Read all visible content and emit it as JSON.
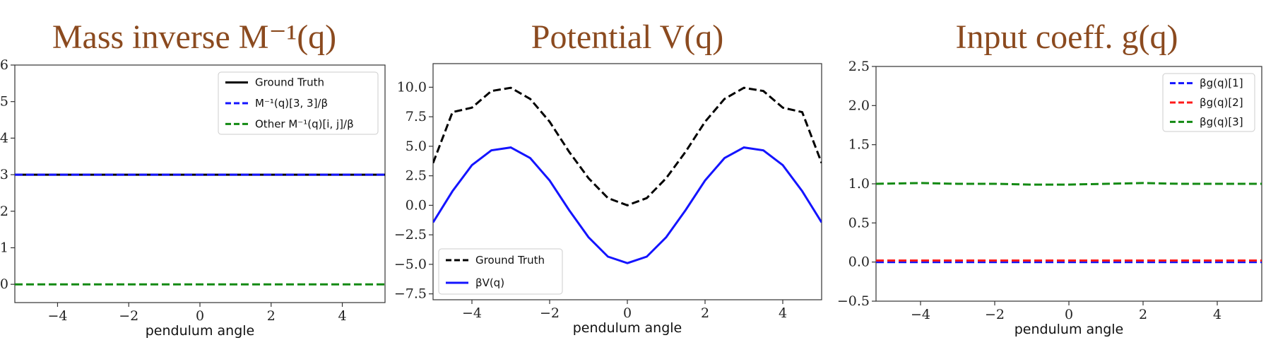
{
  "figure": {
    "xlabel": "pendulum angle",
    "colors": {
      "ground_truth": "#000000",
      "blue": "#1414ff",
      "red": "#ff1a1a",
      "green": "#138a13",
      "title": "#8b4a1f"
    }
  },
  "chart_data": [
    {
      "type": "line",
      "title": "Mass inverse  M⁻¹(q)",
      "xlabel": "pendulum angle",
      "ylabel": "",
      "xlim": [
        -5.2,
        5.2
      ],
      "ylim": [
        -0.5,
        6
      ],
      "xticks": [
        -4,
        -2,
        0,
        2,
        4
      ],
      "yticks": [
        0,
        1,
        2,
        3,
        4,
        5,
        6
      ],
      "xtick_labels": [
        "−4",
        "−2",
        "0",
        "2",
        "4"
      ],
      "ytick_labels": [
        "0",
        "1",
        "2",
        "3",
        "4",
        "5",
        "6"
      ],
      "legend_position": "top-right",
      "series": [
        {
          "name": "Ground Truth",
          "color": "#000000",
          "dash": "solid",
          "x": [
            -5.2,
            5.2
          ],
          "y": [
            3.0,
            3.0
          ]
        },
        {
          "name": "M⁻¹(q)[3, 3]/β",
          "color": "#1414ff",
          "dash": "dashed",
          "x": [
            -5.2,
            5.2
          ],
          "y": [
            3.0,
            3.0
          ]
        },
        {
          "name": "Other M⁻¹(q)[i, j]/β",
          "color": "#138a13",
          "dash": "dashed",
          "x": [
            -5.2,
            5.2
          ],
          "y": [
            0.0,
            0.0
          ]
        }
      ]
    },
    {
      "type": "line",
      "title": "Potential V(q)",
      "xlabel": "pendulum angle",
      "ylabel": "",
      "xlim": [
        -5,
        5
      ],
      "ylim": [
        -8,
        12
      ],
      "xticks": [
        -4,
        -2,
        0,
        2,
        4
      ],
      "yticks": [
        -7.5,
        -5.0,
        -2.5,
        0.0,
        2.5,
        5.0,
        7.5,
        10.0
      ],
      "xtick_labels": [
        "−4",
        "−2",
        "0",
        "2",
        "4"
      ],
      "ytick_labels": [
        "−7.5",
        "−5.0",
        "−2.5",
        "0.0",
        "2.5",
        "5.0",
        "7.5",
        "10.0"
      ],
      "legend_position": "bottom-left",
      "series": [
        {
          "name": "Ground Truth",
          "color": "#000000",
          "dash": "dashed",
          "x": [
            -5,
            -4.5,
            -4,
            -3.5,
            -3,
            -2.5,
            -2,
            -1.5,
            -1,
            -0.5,
            0,
            0.5,
            1,
            1.5,
            2,
            2.5,
            3,
            3.5,
            4,
            4.5,
            5
          ],
          "y": [
            3.58,
            7.89,
            8.27,
            9.68,
            9.95,
            9.01,
            7.08,
            4.54,
            2.3,
            0.61,
            0.0,
            0.61,
            2.3,
            4.54,
            7.08,
            9.01,
            9.95,
            9.68,
            8.27,
            7.89,
            3.58
          ]
        },
        {
          "name": "βV(q)",
          "color": "#1414ff",
          "dash": "solid",
          "x": [
            -5,
            -4.5,
            -4,
            -3.5,
            -3,
            -2.5,
            -2,
            -1.5,
            -1,
            -0.5,
            0,
            0.5,
            1,
            1.5,
            2,
            2.5,
            3,
            3.5,
            4,
            4.5,
            5
          ],
          "y": [
            -1.45,
            1.2,
            3.4,
            4.65,
            4.9,
            4.0,
            2.1,
            -0.4,
            -2.7,
            -4.35,
            -4.9,
            -4.35,
            -2.7,
            -0.4,
            2.1,
            4.0,
            4.9,
            4.65,
            3.4,
            1.2,
            -1.45
          ]
        }
      ]
    },
    {
      "type": "line",
      "title": "Input coeff. g(q)",
      "xlabel": "pendulum angle",
      "ylabel": "",
      "xlim": [
        -5.2,
        5.2
      ],
      "ylim": [
        -0.5,
        2.5
      ],
      "xticks": [
        -4,
        -2,
        0,
        2,
        4
      ],
      "yticks": [
        -0.5,
        0.0,
        0.5,
        1.0,
        1.5,
        2.0,
        2.5
      ],
      "xtick_labels": [
        "−4",
        "−2",
        "0",
        "2",
        "4"
      ],
      "ytick_labels": [
        "−0.5",
        "0.0",
        "0.5",
        "1.0",
        "1.5",
        "2.0",
        "2.5"
      ],
      "legend_position": "top-right",
      "series": [
        {
          "name": "βg(q)[1]",
          "color": "#1414ff",
          "dash": "dashed",
          "x": [
            -5.2,
            5.2
          ],
          "y": [
            0.0,
            0.0
          ]
        },
        {
          "name": "βg(q)[2]",
          "color": "#ff1a1a",
          "dash": "dashed",
          "x": [
            -5.2,
            5.2
          ],
          "y": [
            0.02,
            0.02
          ]
        },
        {
          "name": "βg(q)[3]",
          "color": "#138a13",
          "dash": "dashed",
          "x": [
            -5.2,
            -4,
            -3,
            -2,
            -1,
            0,
            1,
            2,
            3,
            4,
            5.2
          ],
          "y": [
            1.0,
            1.01,
            1.0,
            1.0,
            0.99,
            0.99,
            1.0,
            1.01,
            1.0,
            1.0,
            1.0
          ]
        }
      ]
    }
  ]
}
